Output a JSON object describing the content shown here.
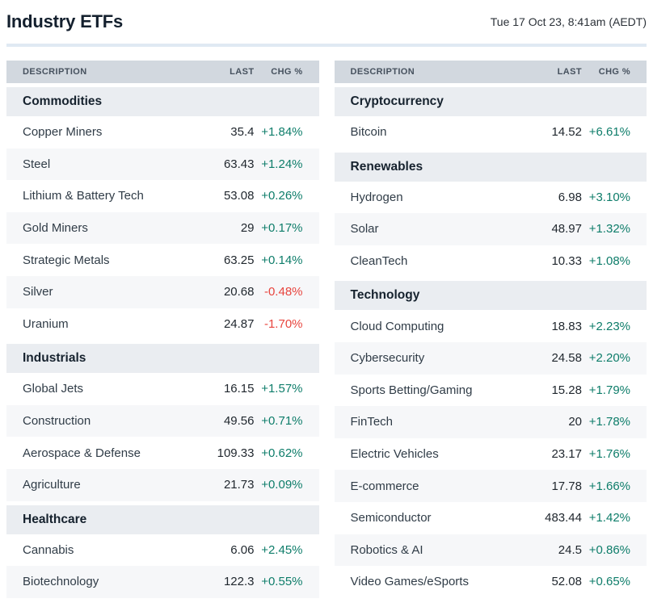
{
  "header": {
    "title": "Industry ETFs",
    "timestamp": "Tue 17 Oct 23, 8:41am (AEDT)"
  },
  "columns": [
    "DESCRIPTION",
    "LAST",
    "CHG %"
  ],
  "colors": {
    "positive": "#0e7d6a",
    "negative": "#e8453e",
    "header_bg": "#d2d8df",
    "section_bg": "#eaedf1",
    "alt_row_bg": "#f6f7f9",
    "divider": "#e0e9f3"
  },
  "tables": [
    {
      "sections": [
        {
          "name": "Commodities",
          "rows": [
            {
              "description": "Copper Miners",
              "last": "35.4",
              "chg": "+1.84%"
            },
            {
              "description": "Steel",
              "last": "63.43",
              "chg": "+1.24%"
            },
            {
              "description": "Lithium & Battery Tech",
              "last": "53.08",
              "chg": "+0.26%"
            },
            {
              "description": "Gold Miners",
              "last": "29",
              "chg": "+0.17%"
            },
            {
              "description": "Strategic Metals",
              "last": "63.25",
              "chg": "+0.14%"
            },
            {
              "description": "Silver",
              "last": "20.68",
              "chg": "-0.48%"
            },
            {
              "description": "Uranium",
              "last": "24.87",
              "chg": "-1.70%"
            }
          ]
        },
        {
          "name": "Industrials",
          "rows": [
            {
              "description": "Global Jets",
              "last": "16.15",
              "chg": "+1.57%"
            },
            {
              "description": "Construction",
              "last": "49.56",
              "chg": "+0.71%"
            },
            {
              "description": "Aerospace & Defense",
              "last": "109.33",
              "chg": "+0.62%"
            },
            {
              "description": "Agriculture",
              "last": "21.73",
              "chg": "+0.09%"
            }
          ]
        },
        {
          "name": "Healthcare",
          "rows": [
            {
              "description": "Cannabis",
              "last": "6.06",
              "chg": "+2.45%"
            },
            {
              "description": "Biotechnology",
              "last": "122.3",
              "chg": "+0.55%"
            }
          ]
        }
      ]
    },
    {
      "sections": [
        {
          "name": "Cryptocurrency",
          "rows": [
            {
              "description": "Bitcoin",
              "last": "14.52",
              "chg": "+6.61%"
            }
          ]
        },
        {
          "name": "Renewables",
          "rows": [
            {
              "description": "Hydrogen",
              "last": "6.98",
              "chg": "+3.10%"
            },
            {
              "description": "Solar",
              "last": "48.97",
              "chg": "+1.32%"
            },
            {
              "description": "CleanTech",
              "last": "10.33",
              "chg": "+1.08%"
            }
          ]
        },
        {
          "name": "Technology",
          "rows": [
            {
              "description": "Cloud Computing",
              "last": "18.83",
              "chg": "+2.23%"
            },
            {
              "description": "Cybersecurity",
              "last": "24.58",
              "chg": "+2.20%"
            },
            {
              "description": "Sports Betting/Gaming",
              "last": "15.28",
              "chg": "+1.79%"
            },
            {
              "description": "FinTech",
              "last": "20",
              "chg": "+1.78%"
            },
            {
              "description": "Electric Vehicles",
              "last": "23.17",
              "chg": "+1.76%"
            },
            {
              "description": "E-commerce",
              "last": "17.78",
              "chg": "+1.66%"
            },
            {
              "description": "Semiconductor",
              "last": "483.44",
              "chg": "+1.42%"
            },
            {
              "description": "Robotics & AI",
              "last": "24.5",
              "chg": "+0.86%"
            },
            {
              "description": "Video Games/eSports",
              "last": "52.08",
              "chg": "+0.65%"
            }
          ]
        }
      ]
    }
  ]
}
